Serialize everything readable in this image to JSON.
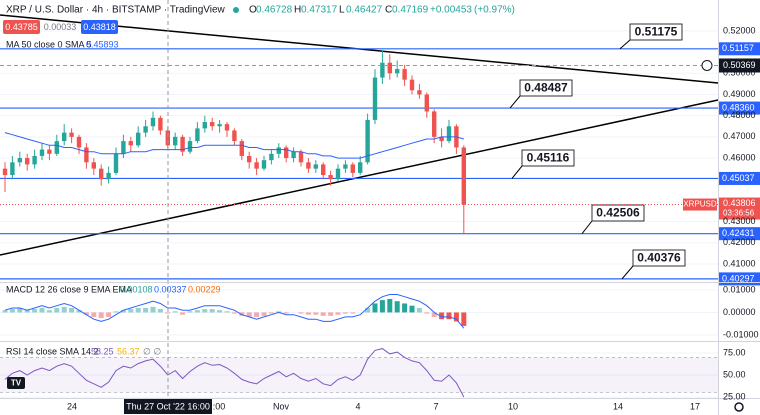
{
  "chart_data": {
    "type": "candlestick",
    "title": "XRP / U.S. Dollar · 4h · BITSTAMP · TradingView",
    "ohlc_labels": [
      "O",
      "H",
      "L",
      "C"
    ],
    "ohlc": [
      0.46728,
      0.47317,
      0.46427,
      0.47169
    ],
    "change": "+0.00453",
    "change_pct": "(+0.97%)",
    "bid": 0.43785,
    "spread": 0.00033,
    "ask": 0.43818,
    "ma_label": "MA 50 close 0 SMA 5",
    "ma_value": 0.45893,
    "ylim": [
      0.4015,
      0.5346
    ],
    "yticks": [
      {
        "value": 0.52,
        "label": "0.52000"
      },
      {
        "value": 0.5,
        "label": "0.50000"
      },
      {
        "value": 0.49,
        "label": "0.49000"
      },
      {
        "value": 0.48,
        "label": "0.48000"
      },
      {
        "value": 0.47,
        "label": "0.47000"
      },
      {
        "value": 0.46,
        "label": "0.46000"
      },
      {
        "value": 0.43,
        "label": "0.43000"
      },
      {
        "value": 0.42,
        "label": "0.42000"
      },
      {
        "value": 0.41,
        "label": "0.41000"
      }
    ],
    "grid": true,
    "up_color": "#26a69a",
    "down_color": "#ef5350",
    "levels": [
      0.51157,
      0.4836,
      0.45037,
      0.42431,
      0.40297
    ],
    "level_labels": [
      "0.51157",
      "0.48360",
      "0.45037",
      "0.42431",
      "0.40297"
    ],
    "level_color": "#2962ff",
    "callouts": [
      0.51175,
      0.48487,
      0.45116,
      0.42506,
      0.40376
    ],
    "crosshair_price": 0.50369,
    "symbol": "XRPUSD",
    "last_price": 0.43806,
    "countdown": "03:36:56",
    "candles": [
      [
        0.455,
        0.458,
        0.444,
        0.452
      ],
      [
        0.452,
        0.461,
        0.45,
        0.458
      ],
      [
        0.458,
        0.463,
        0.456,
        0.46
      ],
      [
        0.46,
        0.462,
        0.454,
        0.457
      ],
      [
        0.457,
        0.464,
        0.455,
        0.461
      ],
      [
        0.461,
        0.467,
        0.459,
        0.464
      ],
      [
        0.464,
        0.466,
        0.459,
        0.462
      ],
      [
        0.462,
        0.471,
        0.461,
        0.468
      ],
      [
        0.468,
        0.476,
        0.466,
        0.472
      ],
      [
        0.472,
        0.474,
        0.467,
        0.47
      ],
      [
        0.47,
        0.471,
        0.462,
        0.465
      ],
      [
        0.465,
        0.467,
        0.455,
        0.458
      ],
      [
        0.458,
        0.46,
        0.452,
        0.455
      ],
      [
        0.455,
        0.457,
        0.447,
        0.45
      ],
      [
        0.45,
        0.456,
        0.448,
        0.453
      ],
      [
        0.453,
        0.465,
        0.452,
        0.462
      ],
      [
        0.462,
        0.471,
        0.46,
        0.468
      ],
      [
        0.468,
        0.47,
        0.463,
        0.466
      ],
      [
        0.466,
        0.475,
        0.465,
        0.472
      ],
      [
        0.472,
        0.478,
        0.47,
        0.475
      ],
      [
        0.475,
        0.482,
        0.473,
        0.479
      ],
      [
        0.479,
        0.48,
        0.471,
        0.473
      ],
      [
        0.473,
        0.475,
        0.464,
        0.466
      ],
      [
        0.466,
        0.472,
        0.464,
        0.47
      ],
      [
        0.47,
        0.471,
        0.461,
        0.463
      ],
      [
        0.463,
        0.47,
        0.462,
        0.468
      ],
      [
        0.468,
        0.477,
        0.467,
        0.474
      ],
      [
        0.474,
        0.48,
        0.472,
        0.477
      ],
      [
        0.477,
        0.479,
        0.473,
        0.475
      ],
      [
        0.475,
        0.478,
        0.472,
        0.476
      ],
      [
        0.476,
        0.477,
        0.47,
        0.473
      ],
      [
        0.473,
        0.474,
        0.466,
        0.468
      ],
      [
        0.468,
        0.469,
        0.459,
        0.461
      ],
      [
        0.461,
        0.463,
        0.455,
        0.458
      ],
      [
        0.458,
        0.46,
        0.452,
        0.455
      ],
      [
        0.455,
        0.461,
        0.454,
        0.459
      ],
      [
        0.459,
        0.464,
        0.457,
        0.462
      ],
      [
        0.462,
        0.467,
        0.46,
        0.465
      ],
      [
        0.465,
        0.466,
        0.458,
        0.46
      ],
      [
        0.46,
        0.465,
        0.458,
        0.463
      ],
      [
        0.463,
        0.464,
        0.456,
        0.458
      ],
      [
        0.458,
        0.46,
        0.453,
        0.455
      ],
      [
        0.455,
        0.459,
        0.453,
        0.457
      ],
      [
        0.457,
        0.458,
        0.45,
        0.452
      ],
      [
        0.452,
        0.454,
        0.447,
        0.45
      ],
      [
        0.45,
        0.457,
        0.449,
        0.455
      ],
      [
        0.455,
        0.459,
        0.453,
        0.457
      ],
      [
        0.457,
        0.458,
        0.451,
        0.453
      ],
      [
        0.453,
        0.461,
        0.452,
        0.458
      ],
      [
        0.458,
        0.481,
        0.457,
        0.478
      ],
      [
        0.478,
        0.502,
        0.476,
        0.498
      ],
      [
        0.498,
        0.511,
        0.495,
        0.505
      ],
      [
        0.505,
        0.509,
        0.497,
        0.5
      ],
      [
        0.5,
        0.506,
        0.498,
        0.502
      ],
      [
        0.502,
        0.504,
        0.494,
        0.497
      ],
      [
        0.497,
        0.499,
        0.49,
        0.492
      ],
      [
        0.492,
        0.495,
        0.488,
        0.49
      ],
      [
        0.49,
        0.491,
        0.479,
        0.482
      ],
      [
        0.482,
        0.483,
        0.467,
        0.47
      ],
      [
        0.47,
        0.474,
        0.465,
        0.468
      ],
      [
        0.468,
        0.478,
        0.467,
        0.475
      ],
      [
        0.475,
        0.476,
        0.462,
        0.465
      ],
      [
        0.465,
        0.466,
        0.424,
        0.438
      ]
    ],
    "ma": [
      0.472,
      0.471,
      0.47,
      0.469,
      0.468,
      0.467,
      0.466,
      0.466,
      0.465,
      0.465,
      0.464,
      0.463,
      0.463,
      0.462,
      0.462,
      0.462,
      0.462,
      0.463,
      0.463,
      0.463,
      0.464,
      0.464,
      0.464,
      0.464,
      0.464,
      0.465,
      0.465,
      0.466,
      0.466,
      0.466,
      0.466,
      0.466,
      0.466,
      0.465,
      0.465,
      0.464,
      0.464,
      0.464,
      0.464,
      0.463,
      0.463,
      0.462,
      0.462,
      0.461,
      0.461,
      0.46,
      0.46,
      0.46,
      0.46,
      0.461,
      0.462,
      0.463,
      0.464,
      0.465,
      0.466,
      0.467,
      0.468,
      0.469,
      0.469,
      0.47,
      0.47,
      0.47,
      0.469
    ],
    "ma_color": "#2962ff",
    "macd_label": "MACD 12 26 close 9 EMA EMA",
    "macd_values": [
      0.00108,
      0.00337,
      0.00229
    ],
    "macd_ylim": [
      -0.0127,
      0.0131
    ],
    "macd_yticks": [
      {
        "value": 0.01,
        "label": "0.01000"
      },
      {
        "value": 0,
        "label": "0.00000"
      },
      {
        "value": -0.01,
        "label": "-0.01000"
      }
    ],
    "macd_hist": [
      0.001,
      0.0015,
      0.002,
      0.001,
      0.0015,
      0.002,
      0.001,
      0.002,
      0.0025,
      0.002,
      0.001,
      -0.001,
      -0.002,
      -0.0025,
      -0.002,
      0.0005,
      0.001,
      0.0015,
      0.002,
      0.002,
      0.0025,
      0.0015,
      -0.0005,
      0.0005,
      -0.001,
      0.0005,
      0.001,
      0.0015,
      0.0015,
      0.001,
      0.0005,
      -0.0005,
      -0.0015,
      -0.002,
      -0.002,
      -0.0015,
      -0.0005,
      0.0005,
      -0.0005,
      0,
      -0.0005,
      -0.001,
      -0.001,
      -0.0015,
      -0.0015,
      -0.001,
      -0.0005,
      -0.0005,
      0,
      0.002,
      0.004,
      0.0055,
      0.006,
      0.005,
      0.004,
      0.003,
      0.002,
      -0.0005,
      -0.002,
      -0.003,
      -0.003,
      -0.004,
      -0.006
    ],
    "macd_line": [
      0.001,
      0.002,
      0.002,
      0.001,
      0.002,
      0.003,
      0.002,
      0.003,
      0.004,
      0.003,
      0.001,
      -0.001,
      -0.003,
      -0.004,
      -0.003,
      -0.001,
      0.001,
      0.002,
      0.003,
      0.004,
      0.005,
      0.004,
      0.002,
      0.002,
      0.001,
      0.001,
      0.002,
      0.003,
      0.003,
      0.003,
      0.002,
      0.001,
      -0.001,
      -0.002,
      -0.003,
      -0.002,
      -0.001,
      0,
      -0.001,
      -0.001,
      -0.002,
      -0.003,
      -0.003,
      -0.004,
      -0.004,
      -0.003,
      -0.002,
      -0.002,
      -0.001,
      0.002,
      0.005,
      0.007,
      0.008,
      0.008,
      0.007,
      0.006,
      0.005,
      0.003,
      0,
      -0.002,
      -0.002,
      -0.003,
      -0.007
    ],
    "rsi_label": "RSI 14 close SMA 14 2",
    "rsi_values": [
      58.25,
      56.37
    ],
    "rsi_empty": "∅ ∅",
    "rsi_ylim": [
      23.9,
      87.5
    ],
    "rsi_yticks": [
      {
        "value": 75,
        "label": "75.00"
      },
      {
        "value": 50,
        "label": "50.00"
      },
      {
        "value": 25,
        "label": "25.00"
      }
    ],
    "rsi": [
      45,
      52,
      55,
      50,
      55,
      58,
      55,
      60,
      63,
      60,
      52,
      44,
      40,
      36,
      42,
      55,
      60,
      58,
      63,
      66,
      68,
      60,
      50,
      55,
      46,
      54,
      60,
      64,
      61,
      62,
      58,
      52,
      45,
      42,
      40,
      46,
      50,
      54,
      48,
      52,
      46,
      43,
      46,
      40,
      38,
      45,
      48,
      44,
      50,
      68,
      78,
      80,
      74,
      76,
      70,
      66,
      64,
      55,
      44,
      43,
      50,
      41,
      25
    ],
    "x_labels": [
      "24",
      "Thu 27 Oct '22 16:00",
      ":00",
      "Nov",
      "4",
      "7",
      "10",
      "14",
      "17"
    ]
  }
}
